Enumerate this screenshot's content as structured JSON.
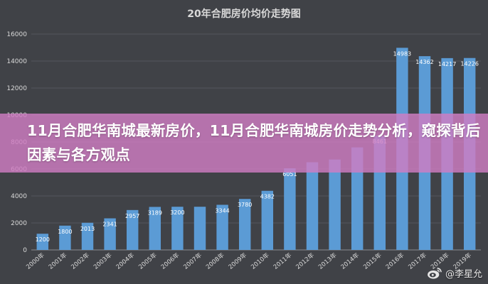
{
  "chart_data": {
    "type": "bar",
    "title": "20年合肥房价均价走势图",
    "categories": [
      "2000年",
      "2001年",
      "2002年",
      "2003年",
      "2004年",
      "2005年",
      "2006年",
      "2007年",
      "2008年",
      "2009年",
      "2010年",
      "2011年",
      "2012年",
      "2013年",
      "2014年",
      "2015年",
      "2016年",
      "2017年",
      "2018年",
      "2019年"
    ],
    "values": [
      1200,
      1800,
      2013,
      2341,
      2957,
      3189,
      3200,
      3200,
      3344,
      3780,
      4382,
      6051,
      6500,
      6700,
      7600,
      8461,
      14983,
      14362,
      14217,
      14226
    ],
    "data_labels": [
      "1200",
      "1800",
      "2013",
      "2341",
      "2957",
      "3189",
      "3200",
      "",
      "3344",
      "3780",
      "4382",
      "6051",
      "",
      "",
      "",
      "8461",
      "14983",
      "14362",
      "14217",
      "14226"
    ],
    "yticks": [
      "0",
      "2000",
      "4000",
      "6000",
      "8000",
      "10000",
      "12000",
      "14000",
      "16000"
    ],
    "ylim": [
      0,
      16000
    ],
    "grid": true,
    "xlabel": "",
    "ylabel": "",
    "bar_color": "#5b9bd5",
    "background_color": "#404247",
    "text_color": "#d9d9d9"
  },
  "overlay": {
    "title": "11月合肥华南城最新房价，11月合肥华南城房价走势分析，窥探背后因素与各方观点",
    "background_color": "#cf7cc2"
  },
  "watermark": {
    "icon": "weibo-icon",
    "text": "@李星允"
  }
}
